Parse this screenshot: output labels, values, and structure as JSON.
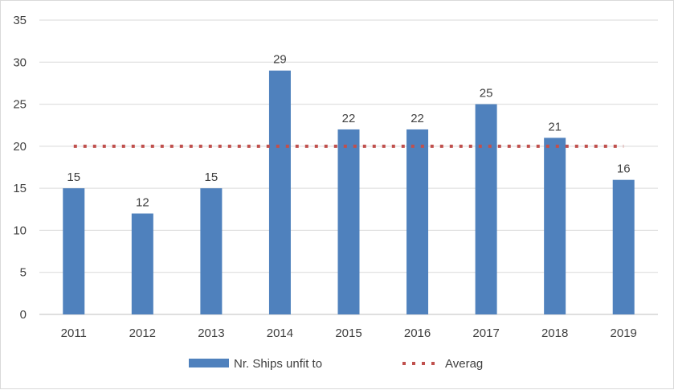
{
  "chart_data": {
    "type": "bar",
    "categories": [
      "2011",
      "2012",
      "2013",
      "2014",
      "2015",
      "2016",
      "2017",
      "2018",
      "2019"
    ],
    "series": [
      {
        "name": "Nr. Ships unfit to",
        "type": "bar",
        "values": [
          15,
          12,
          15,
          29,
          22,
          22,
          25,
          21,
          16
        ],
        "color": "#4f81bd"
      },
      {
        "name": "Averag",
        "type": "line",
        "style": "dotted",
        "values": [
          20,
          20,
          20,
          20,
          20,
          20,
          20,
          20,
          20
        ],
        "color": "#c0504d"
      }
    ],
    "ylim": [
      0,
      35
    ],
    "yticks": [
      0,
      5,
      10,
      15,
      20,
      25,
      30,
      35
    ],
    "grid": true,
    "data_labels": true,
    "legend_position": "bottom"
  }
}
